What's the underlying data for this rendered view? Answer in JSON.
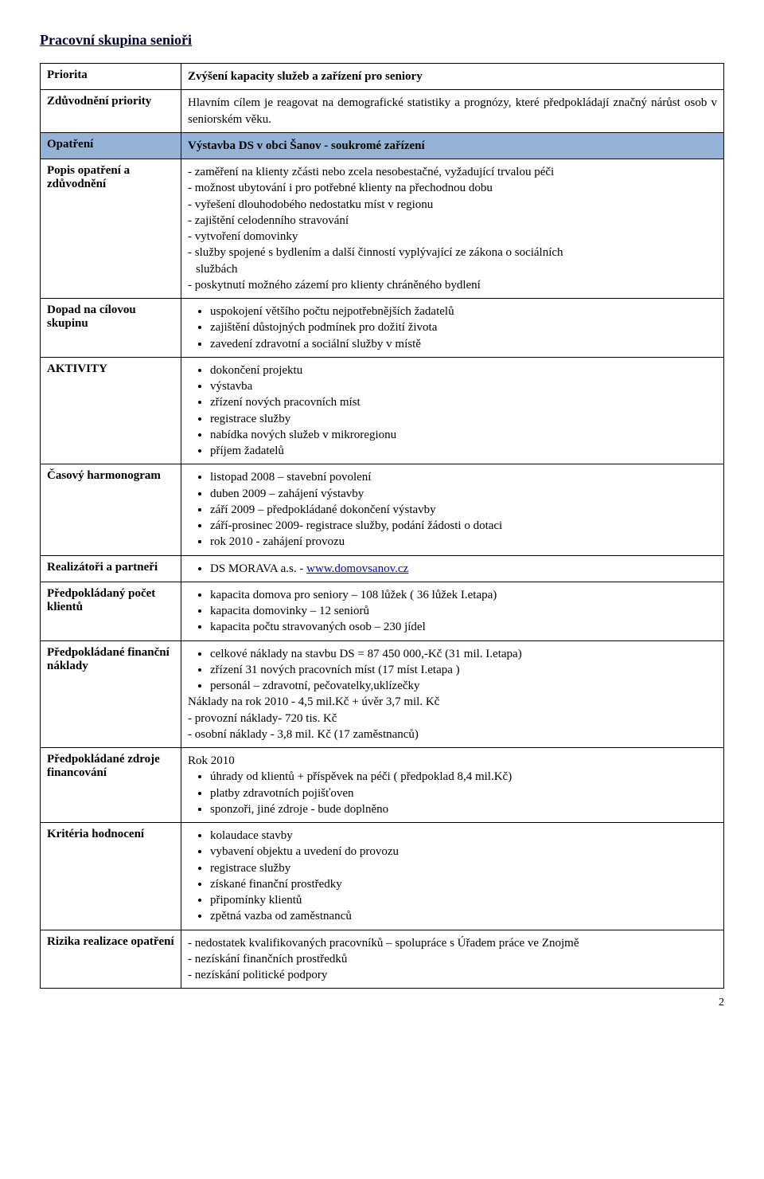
{
  "page": {
    "title": "Pracovní skupina senioři",
    "number": "2"
  },
  "rows": {
    "priorita": {
      "label": "Priorita",
      "body": "Zvýšení kapacity služeb a zařízení pro seniory"
    },
    "zduvodneni_priority": {
      "label": "Zdůvodnění priority",
      "body": "Hlavním cílem  je reagovat na demografické statistiky a prognózy, které předpokládají značný nárůst osob v seniorském věku."
    },
    "opatreni": {
      "label": "Opatření",
      "body": "Výstavba DS v obci Šanov - soukromé zařízení"
    },
    "popis": {
      "label": "Popis opatření a zdůvodnění",
      "lines": [
        "zaměření na klienty zčásti nebo zcela nesobestačné, vyžadující trvalou péči",
        "možnost ubytování i pro potřebné  klienty  na přechodnou dobu",
        "vyřešení dlouhodobého nedostatku míst v regionu",
        "zajištění celodenního stravování",
        "vytvoření domovinky",
        "služby spojené s bydlením a další činností vyplývající ze zákona o sociálních službách",
        "poskytnutí možného zázemí pro klienty chráněného bydlení"
      ],
      "indent_line6": "  službách"
    },
    "dopad": {
      "label": "Dopad na cílovou skupinu",
      "items": [
        "uspokojení většího počtu nejpotřebnějších žadatelů",
        "zajištění důstojných podmínek pro dožití života",
        "zavedení zdravotní a sociální služby v místě"
      ]
    },
    "aktivity": {
      "label": "AKTIVITY",
      "items": [
        "dokončení projektu",
        "výstavba",
        "zřízení nových pracovních míst",
        "registrace služby",
        "nabídka nových služeb v mikroregionu",
        "příjem žadatelů"
      ]
    },
    "harmonogram": {
      "label": "Časový harmonogram",
      "items": [
        "listopad 2008 – stavební povolení",
        "duben 2009 – zahájení výstavby",
        "září 2009 – předpokládané dokončení výstavby",
        "září-prosinec 2009- registrace služby, podání žádosti o dotaci",
        "rok 2010 - zahájení provozu"
      ]
    },
    "realizatori": {
      "label": "Realizátoři a partneři",
      "prefix": "DS MORAVA a.s. - ",
      "link_text": "www.domovsanov.cz"
    },
    "klienti": {
      "label": "Předpokládaný počet klientů",
      "items": [
        "kapacita domova pro seniory – 108 lůžek ( 36 lůžek I.etapa)",
        "kapacita domovinky – 12 seniorů",
        "kapacita počtu stravovaných osob – 230 jídel"
      ]
    },
    "naklady": {
      "label": "Předpokládané finanční náklady",
      "items": [
        "celkové náklady na stavbu DS = 87 450 000,-Kč (31 mil. I.etapa)",
        "zřízení 31 nových pracovních míst (17 míst I.etapa )",
        "personál – zdravotní, pečovatelky,uklízečky"
      ],
      "plain": [
        "Náklady na rok 2010 -  4,5 mil.Kč  + úvěr 3,7 mil. Kč",
        "- provozní náklady-  720 tis. Kč",
        "- osobní náklady -  3,8 mil. Kč  (17 zaměstnanců)"
      ]
    },
    "zdroje": {
      "label": "Předpokládané zdroje financování",
      "intro": "Rok 2010",
      "items": [
        "úhrady od klientů + příspěvek na péči  ( předpoklad 8,4 mil.Kč)",
        "platby zdravotních pojišťoven",
        "sponzoři, jiné zdroje - bude doplněno"
      ]
    },
    "kriteria": {
      "label": "Kritéria hodnocení",
      "items": [
        "kolaudace stavby",
        "vybavení objektu a uvedení do provozu",
        "registrace služby",
        "získané finanční prostředky",
        "připomínky klientů",
        "zpětná vazba od zaměstnanců"
      ]
    },
    "rizika": {
      "label": "Rizika realizace opatření",
      "lines": [
        "nedostatek kvalifikovaných pracovníků – spolupráce s Úřadem práce ve Znojmě",
        "nezískání finančních prostředků",
        "nezískání politické podpory"
      ]
    }
  }
}
